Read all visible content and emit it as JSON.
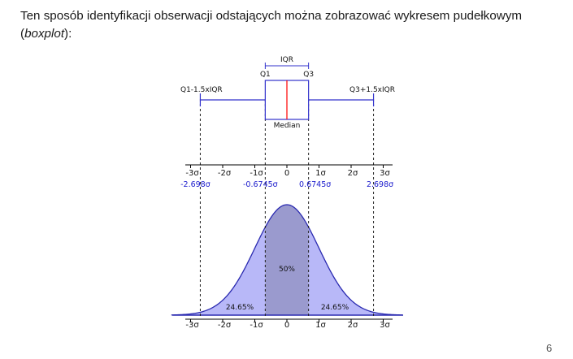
{
  "intro": {
    "part1": "Ten sposób identyfikacji obserwacji odstających można zobrazować wykresem pudełkowym (",
    "italic": "boxplot",
    "part2": "):"
  },
  "figure": {
    "boxplot_labels": {
      "iqr": "IQR",
      "q1": "Q1",
      "q3": "Q3",
      "lower_whisker": "Q1-1.5xIQR",
      "upper_whisker": "Q3+1.5xIQR",
      "median": "Median"
    },
    "sigma_axis_ticks": [
      {
        "value": -3,
        "label": "-3σ"
      },
      {
        "value": -2,
        "label": "-2σ"
      },
      {
        "value": -1,
        "label": "-1σ"
      },
      {
        "value": 0,
        "label": "0"
      },
      {
        "value": 1,
        "label": "1σ"
      },
      {
        "value": 2,
        "label": "2σ"
      },
      {
        "value": 3,
        "label": "3σ"
      }
    ],
    "blue_markers": [
      {
        "value": -2.698,
        "label": "-2.698σ"
      },
      {
        "value": -0.6745,
        "label": "-0.6745σ"
      },
      {
        "value": 0.6745,
        "label": "0.6745σ"
      },
      {
        "value": 2.698,
        "label": "2.698σ"
      }
    ],
    "area_labels": {
      "center": "50%",
      "left": "24.65%",
      "right": "24.65%"
    },
    "colors": {
      "box": "#3333cc",
      "median_line": "#ff0000",
      "curve": "#2a2ab0",
      "tail_fill": "#b8b8f8",
      "iqr_fill": "#9a9ace",
      "marker_text": "#1a1acc"
    }
  },
  "page_number": "6"
}
